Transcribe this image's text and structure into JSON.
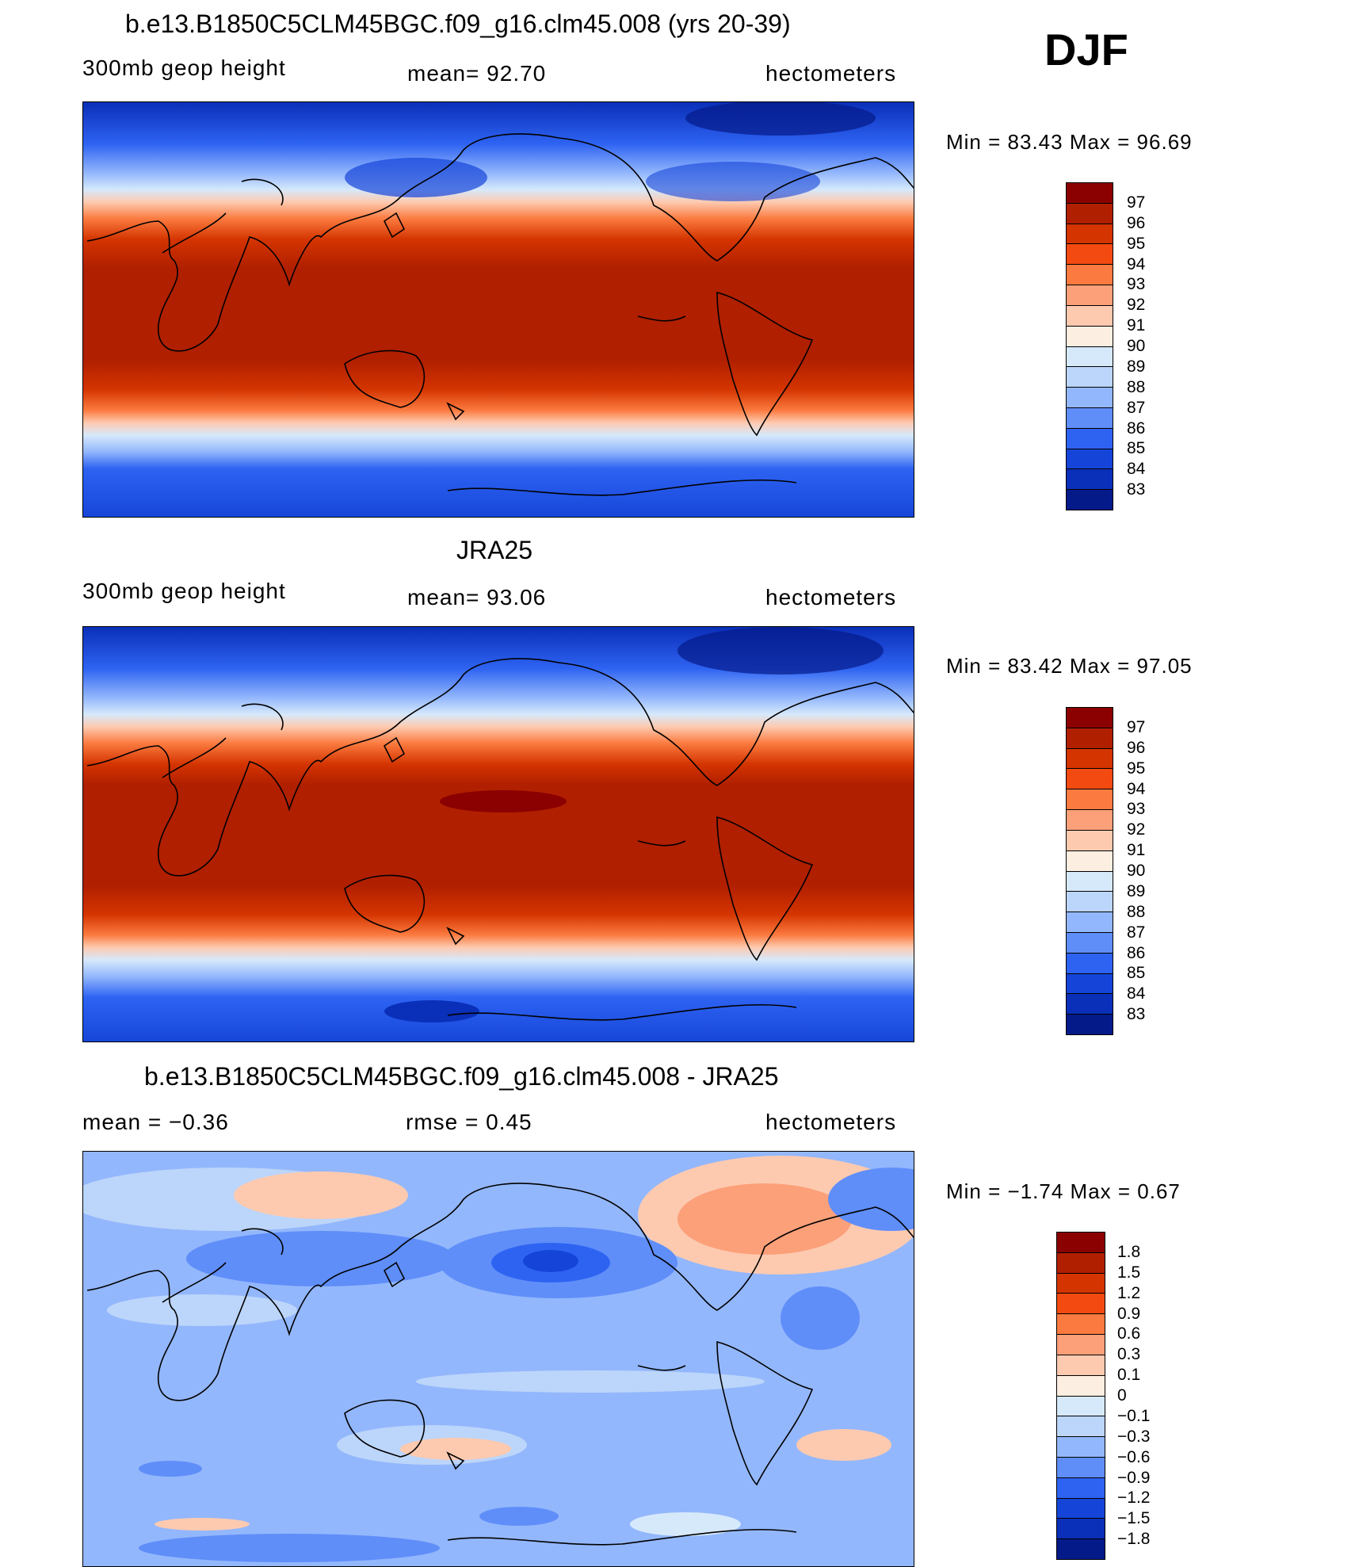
{
  "season": "DJF",
  "panels": [
    {
      "title": "b.e13.B1850C5CLM45BGC.f09_g16.clm45.008 (yrs 20-39)",
      "left_label": "300mb  geop  height",
      "center_label": "mean=   92.70",
      "right_label": "hectometers",
      "minmax": "Min  =    83.43  Max  =    96.69",
      "colorbar_labels": [
        "97",
        "96",
        "95",
        "94",
        "93",
        "92",
        "91",
        "90",
        "89",
        "88",
        "87",
        "86",
        "85",
        "84",
        "83"
      ],
      "colorbar_colors": [
        "#8b0000",
        "#b01f00",
        "#d43400",
        "#f34a12",
        "#fb7a3f",
        "#fca07a",
        "#fdcab0",
        "#fdeee2",
        "#d6e9fb",
        "#bcd5fa",
        "#93b7fc",
        "#5f8ef9",
        "#2e63f2",
        "#1545d8",
        "#0a2fb8",
        "#041a89"
      ],
      "field": {
        "north_pole": 83.5,
        "south_pole": 83.6,
        "tropical_max": 96.2
      }
    },
    {
      "title": "JRA25",
      "left_label": "300mb  geop  height",
      "center_label": "mean=   93.06",
      "right_label": "hectometers",
      "minmax": "Min  =    83.42  Max  =    97.05",
      "colorbar_labels": [
        "97",
        "96",
        "95",
        "94",
        "93",
        "92",
        "91",
        "90",
        "89",
        "88",
        "87",
        "86",
        "85",
        "84",
        "83"
      ],
      "colorbar_colors": [
        "#8b0000",
        "#b01f00",
        "#d43400",
        "#f34a12",
        "#fb7a3f",
        "#fca07a",
        "#fdcab0",
        "#fdeee2",
        "#d6e9fb",
        "#bcd5fa",
        "#93b7fc",
        "#5f8ef9",
        "#2e63f2",
        "#1545d8",
        "#0a2fb8",
        "#041a89"
      ],
      "field": {
        "north_pole": 83.4,
        "south_pole": 83.5,
        "tropical_max": 96.6
      }
    },
    {
      "title": "b.e13.B1850C5CLM45BGC.f09_g16.clm45.008 - JRA25",
      "left_label": "mean  =    −0.36",
      "center_label": "rmse  =     0.45",
      "right_label": "hectometers",
      "minmax": "Min  =    −1.74  Max  =      0.67",
      "colorbar_labels": [
        "1.8",
        "1.5",
        "1.2",
        "0.9",
        "0.6",
        "0.3",
        "0.1",
        "0",
        "−0.1",
        "−0.3",
        "−0.6",
        "−0.9",
        "−1.2",
        "−1.5",
        "−1.8"
      ],
      "colorbar_colors": [
        "#8b0000",
        "#b01f00",
        "#d43400",
        "#f34a12",
        "#fb7a3f",
        "#fca07a",
        "#fdcab0",
        "#fdeee2",
        "#d6e9fb",
        "#bcd5fa",
        "#93b7fc",
        "#5f8ef9",
        "#2e63f2",
        "#1545d8",
        "#0a2fb8",
        "#041a89"
      ],
      "field": {
        "background": -0.45
      }
    }
  ]
}
